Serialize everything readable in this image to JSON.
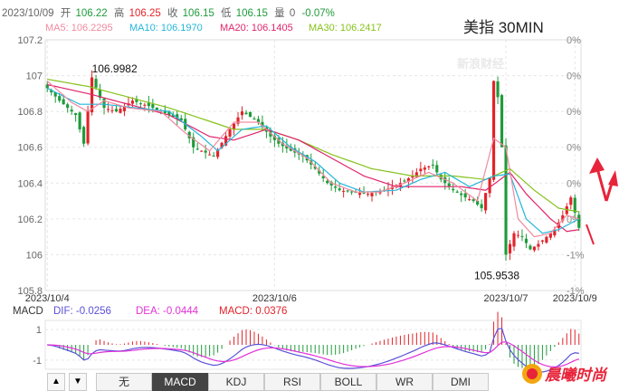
{
  "header": {
    "date": "2023/10/09",
    "open_label": "开",
    "open": "106.22",
    "high_label": "高",
    "high": "106.25",
    "close_label": "收",
    "close": "106.15",
    "low_label": "低",
    "low": "106.15",
    "volume_label": "量",
    "volume": "0",
    "change": "-0.07%"
  },
  "ma_legend": [
    {
      "text": "MA5: 106.2295",
      "color": "#f08aa0"
    },
    {
      "text": "MA10: 106.1970",
      "color": "#25b6d9"
    },
    {
      "text": "MA20: 106.1405",
      "color": "#e0246a"
    },
    {
      "text": "MA30: 106.2417",
      "color": "#86c21b"
    }
  ],
  "title": "美指 30MIN",
  "watermark": "新浪财经",
  "tabs": [
    "无",
    "MACD",
    "KDJ",
    "RSI",
    "BOLL",
    "WR",
    "DMI"
  ],
  "active_tab": "MACD",
  "nav_buttons": [
    "▲",
    "▼"
  ],
  "macd_legend": {
    "label": "MACD",
    "dif": "DIF: -0.0256",
    "dea": "DEA: -0.0444",
    "macd": "MACD: 0.0376"
  },
  "logo_text": "晨曦时尚",
  "colors": {
    "up": "#e2232a",
    "down": "#1e9b3a",
    "ma5": "#f08aa0",
    "ma10": "#25b6d9",
    "ma20": "#e0246a",
    "ma30": "#86c21b",
    "dif": "#5a50d8",
    "dea": "#e231d8",
    "grid": "#e6e6e6",
    "arrow": "#e8243a"
  },
  "chart_data": {
    "type": "candlestick",
    "title": "美指 30MIN",
    "y_ticks": [
      "107.2",
      "107",
      "106.8",
      "106.6",
      "106.4",
      "106.2",
      "106",
      "105.8"
    ],
    "ylim": [
      105.8,
      107.2
    ],
    "right_ticks": [
      "0%",
      "0%",
      "0%",
      "0%",
      "0%",
      "0%",
      "-1%",
      "-1%"
    ],
    "x_tick_labels": [
      "2023/10/4",
      "2023/10/6",
      "2023/10/7",
      "2023/10/9"
    ],
    "x_tick_index": [
      0,
      56,
      113,
      130
    ],
    "annotations": [
      {
        "text": "106.9982",
        "value": 106.9982,
        "index": 11
      },
      {
        "text": "105.9538",
        "value": 105.9538,
        "index": 113
      }
    ],
    "candle_count": 132,
    "close_path": [
      [
        0,
        106.93
      ],
      [
        3,
        106.86
      ],
      [
        7,
        106.78
      ],
      [
        9,
        106.62
      ],
      [
        11,
        106.99
      ],
      [
        14,
        106.82
      ],
      [
        17,
        106.8
      ],
      [
        21,
        106.86
      ],
      [
        25,
        106.83
      ],
      [
        29,
        106.79
      ],
      [
        33,
        106.75
      ],
      [
        36,
        106.6
      ],
      [
        38,
        106.58
      ],
      [
        41,
        106.55
      ],
      [
        45,
        106.7
      ],
      [
        48,
        106.8
      ],
      [
        52,
        106.74
      ],
      [
        55,
        106.66
      ],
      [
        57,
        106.62
      ],
      [
        60,
        106.58
      ],
      [
        63,
        106.55
      ],
      [
        66,
        106.48
      ],
      [
        69,
        106.4
      ],
      [
        72,
        106.36
      ],
      [
        75,
        106.35
      ],
      [
        79,
        106.34
      ],
      [
        83,
        106.36
      ],
      [
        87,
        106.4
      ],
      [
        90,
        106.44
      ],
      [
        92,
        106.48
      ],
      [
        95,
        106.5
      ],
      [
        97,
        106.42
      ],
      [
        100,
        106.36
      ],
      [
        103,
        106.32
      ],
      [
        105,
        106.3
      ],
      [
        107,
        106.26
      ],
      [
        109,
        106.43
      ],
      [
        110,
        106.97
      ],
      [
        111,
        106.88
      ],
      [
        112,
        106.6
      ],
      [
        113,
        106.0
      ],
      [
        115,
        106.12
      ],
      [
        117,
        106.1
      ],
      [
        119,
        106.03
      ],
      [
        121,
        106.06
      ],
      [
        123,
        106.1
      ],
      [
        125,
        106.14
      ],
      [
        127,
        106.22
      ],
      [
        129,
        106.32
      ],
      [
        131,
        106.15
      ]
    ],
    "ma5_path": [
      [
        0,
        106.97
      ],
      [
        6,
        106.85
      ],
      [
        10,
        106.8
      ],
      [
        14,
        106.86
      ],
      [
        20,
        106.82
      ],
      [
        28,
        106.8
      ],
      [
        34,
        106.68
      ],
      [
        40,
        106.58
      ],
      [
        46,
        106.74
      ],
      [
        52,
        106.74
      ],
      [
        58,
        106.62
      ],
      [
        64,
        106.54
      ],
      [
        70,
        106.4
      ],
      [
        76,
        106.35
      ],
      [
        82,
        106.35
      ],
      [
        88,
        106.4
      ],
      [
        94,
        106.46
      ],
      [
        100,
        106.4
      ],
      [
        106,
        106.3
      ],
      [
        110,
        106.65
      ],
      [
        113,
        106.6
      ],
      [
        116,
        106.2
      ],
      [
        120,
        106.1
      ],
      [
        124,
        106.12
      ],
      [
        128,
        106.22
      ],
      [
        131,
        106.2
      ]
    ],
    "ma10_path": [
      [
        0,
        106.93
      ],
      [
        8,
        106.84
      ],
      [
        14,
        106.84
      ],
      [
        22,
        106.82
      ],
      [
        30,
        106.8
      ],
      [
        38,
        106.66
      ],
      [
        42,
        106.58
      ],
      [
        48,
        106.7
      ],
      [
        54,
        106.72
      ],
      [
        60,
        106.6
      ],
      [
        66,
        106.52
      ],
      [
        72,
        106.4
      ],
      [
        78,
        106.35
      ],
      [
        86,
        106.36
      ],
      [
        92,
        106.42
      ],
      [
        98,
        106.46
      ],
      [
        104,
        106.38
      ],
      [
        110,
        106.44
      ],
      [
        114,
        106.45
      ],
      [
        118,
        106.2
      ],
      [
        122,
        106.12
      ],
      [
        126,
        106.14
      ],
      [
        131,
        106.2
      ]
    ],
    "ma20_path": [
      [
        0,
        106.95
      ],
      [
        10,
        106.9
      ],
      [
        20,
        106.84
      ],
      [
        30,
        106.78
      ],
      [
        40,
        106.66
      ],
      [
        46,
        106.64
      ],
      [
        54,
        106.7
      ],
      [
        62,
        106.64
      ],
      [
        70,
        106.54
      ],
      [
        78,
        106.44
      ],
      [
        86,
        106.38
      ],
      [
        94,
        106.38
      ],
      [
        102,
        106.38
      ],
      [
        108,
        106.36
      ],
      [
        114,
        106.46
      ],
      [
        118,
        106.34
      ],
      [
        124,
        106.2
      ],
      [
        128,
        106.13
      ],
      [
        131,
        106.14
      ]
    ],
    "ma30_path": [
      [
        0,
        106.98
      ],
      [
        10,
        106.94
      ],
      [
        20,
        106.88
      ],
      [
        30,
        106.82
      ],
      [
        38,
        106.76
      ],
      [
        46,
        106.7
      ],
      [
        54,
        106.7
      ],
      [
        62,
        106.64
      ],
      [
        70,
        106.56
      ],
      [
        80,
        106.48
      ],
      [
        90,
        106.44
      ],
      [
        100,
        106.44
      ],
      [
        108,
        106.42
      ],
      [
        114,
        106.48
      ],
      [
        120,
        106.36
      ],
      [
        126,
        106.26
      ],
      [
        131,
        106.24
      ]
    ],
    "macd": {
      "y_ticks": [
        "1",
        "-1"
      ],
      "ylim": [
        -1.6,
        1.6
      ],
      "dif": -0.0256,
      "dea": -0.0444,
      "macd": 0.0376
    }
  }
}
